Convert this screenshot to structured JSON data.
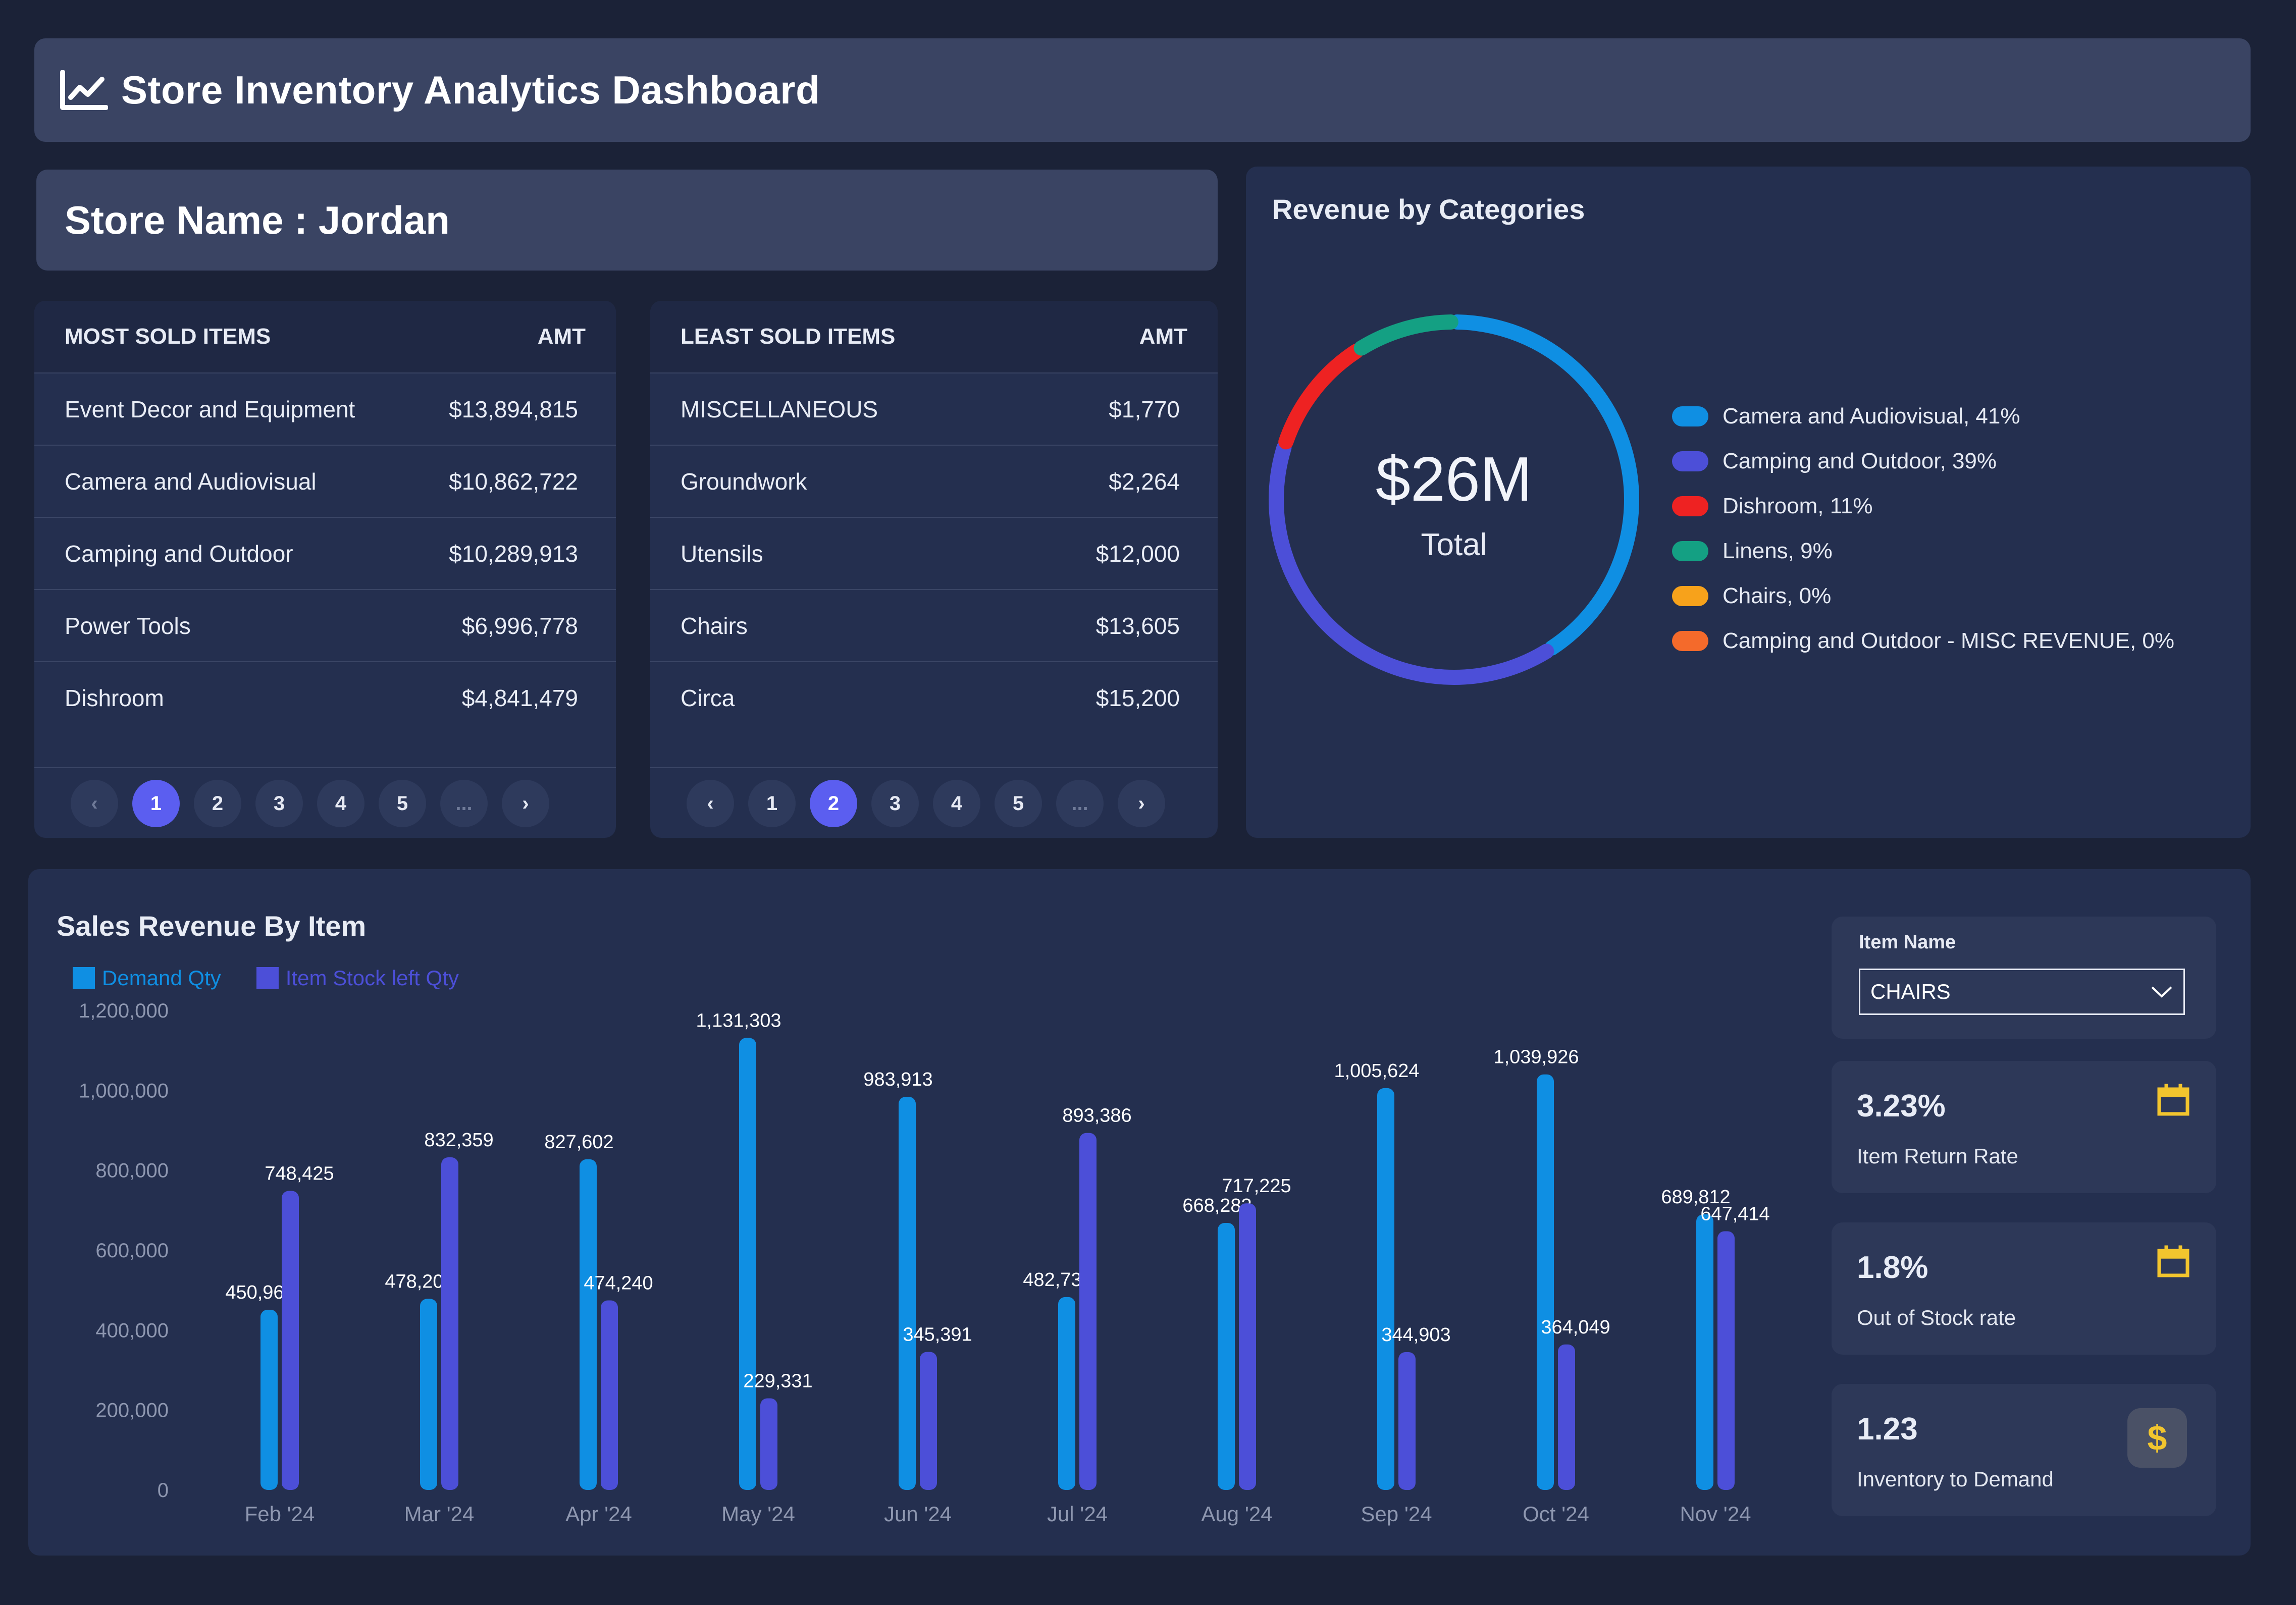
{
  "header": {
    "title": "Store Inventory Analytics Dashboard",
    "icon": "line-chart-icon"
  },
  "store": {
    "label": "Store Name : Jordan"
  },
  "most_sold": {
    "col_item": "MOST SOLD ITEMS",
    "col_amt": "AMT",
    "rows": [
      {
        "item": "Event Decor and Equipment",
        "amt": "$13,894,815"
      },
      {
        "item": "Camera and Audiovisual",
        "amt": "$10,862,722"
      },
      {
        "item": "Camping and Outdoor",
        "amt": "$10,289,913"
      },
      {
        "item": "Power Tools",
        "amt": "$6,996,778"
      },
      {
        "item": "Dishroom",
        "amt": "$4,841,479"
      }
    ],
    "pager": {
      "prev": "‹",
      "pages": [
        "1",
        "2",
        "3",
        "4",
        "5"
      ],
      "ellipsis": "...",
      "next": "›",
      "active": 1
    }
  },
  "least_sold": {
    "col_item": "LEAST SOLD ITEMS",
    "col_amt": "AMT",
    "rows": [
      {
        "item": "MISCELLANEOUS",
        "amt": "$1,770"
      },
      {
        "item": "Groundwork",
        "amt": "$2,264"
      },
      {
        "item": "Utensils",
        "amt": "$12,000"
      },
      {
        "item": "Chairs",
        "amt": "$13,605"
      },
      {
        "item": "Circa",
        "amt": "$15,200"
      }
    ],
    "pager": {
      "prev": "‹",
      "pages": [
        "1",
        "2",
        "3",
        "4",
        "5"
      ],
      "ellipsis": "...",
      "next": "›",
      "active": 2
    }
  },
  "revenue_panel": {
    "title": "Revenue by Categories",
    "center_value": "$26M",
    "center_label": "Total"
  },
  "sales_panel": {
    "title": "Sales Revenue By Item"
  },
  "filter": {
    "label": "Item Name",
    "selected": "CHAIRS"
  },
  "kpis": [
    {
      "value": "3.23%",
      "label": "Item Return Rate",
      "icon": "calendar-icon"
    },
    {
      "value": "1.8%",
      "label": "Out of Stock rate",
      "icon": "calendar-icon"
    },
    {
      "value": "1.23",
      "label": "Inventory to Demand",
      "icon": "dollar-icon",
      "symbol": "$"
    }
  ],
  "colors": {
    "demand": "#0f8fe3",
    "stock": "#4c4fd8",
    "active_page": "#5b5ef0",
    "kpi_icon": "#f2c52e"
  },
  "chart_data": [
    {
      "type": "pie",
      "slices": [
        {
          "label": "Camera and Audiovisual, 41%",
          "value": 41,
          "color": "#0f8fe3"
        },
        {
          "label": "Camping and Outdoor, 39%",
          "value": 39,
          "color": "#4c4fd8"
        },
        {
          "label": "Dishroom, 11%",
          "value": 11,
          "color": "#ee2222"
        },
        {
          "label": "Linens, 9%",
          "value": 9,
          "color": "#14a083"
        },
        {
          "label": "Chairs, 0%",
          "value": 0,
          "color": "#f7a21b"
        },
        {
          "label": "Camping and Outdoor - MISC REVENUE, 0%",
          "value": 0,
          "color": "#f46a2b"
        }
      ]
    },
    {
      "type": "bar",
      "categories": [
        "Feb '24",
        "Mar '24",
        "Apr '24",
        "May '24",
        "Jun '24",
        "Jul '24",
        "Aug '24",
        "Sep '24",
        "Oct '24",
        "Nov '24"
      ],
      "series": [
        {
          "name": "Demand Qty",
          "values": [
            450966,
            478207,
            827602,
            1131303,
            983913,
            482730,
            668283,
            1005624,
            1039926,
            689812
          ],
          "labels": [
            "450,966",
            "478,207",
            "827,602",
            "1,131,303",
            "983,913",
            "482,730",
            "668,283",
            "1,005,624",
            "1,039,926",
            "689,812"
          ]
        },
        {
          "name": "Item Stock left Qty",
          "values": [
            748425,
            832359,
            474240,
            229331,
            345391,
            893386,
            717225,
            344903,
            364049,
            647414
          ],
          "labels": [
            "748,425",
            "832,359",
            "474,240",
            "229,331",
            "345,391",
            "893,386",
            "717,225",
            "344,903",
            "364,049",
            "647,414"
          ]
        }
      ],
      "ylim": [
        0,
        1200000
      ],
      "yticks": [
        0,
        200000,
        400000,
        600000,
        800000,
        1000000,
        1200000
      ],
      "ytick_labels": [
        "0",
        "200,000",
        "400,000",
        "600,000",
        "800,000",
        "1,000,000",
        "1,200,000"
      ],
      "legend": "top-left",
      "grid": false
    }
  ]
}
